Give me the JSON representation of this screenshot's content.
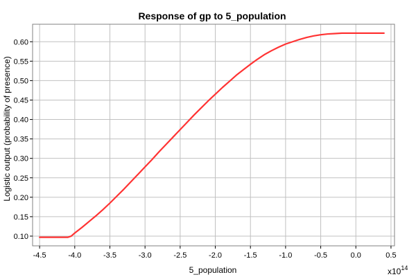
{
  "chart_data": {
    "type": "line",
    "title": "Response of gp to 5_population",
    "xlabel": "5_population",
    "ylabel": "Logistic output (probability of presence)",
    "x_multiplier": "x10",
    "x_multiplier_exponent": "14",
    "xlim": [
      -4.6,
      0.55
    ],
    "ylim": [
      0.075,
      0.645
    ],
    "x_ticks": [
      "-4.5",
      "-4.0",
      "-3.5",
      "-3.0",
      "-2.5",
      "-2.0",
      "-1.5",
      "-1.0",
      "-0.5",
      "0.0",
      "0.5"
    ],
    "y_ticks": [
      "0.10",
      "0.15",
      "0.20",
      "0.25",
      "0.30",
      "0.35",
      "0.40",
      "0.45",
      "0.50",
      "0.55",
      "0.60"
    ],
    "grid": true,
    "series": [
      {
        "color": "#ff3333",
        "x": [
          -4.5,
          -4.1,
          -4.05,
          -4.0,
          -3.9,
          -3.8,
          -3.7,
          -3.6,
          -3.5,
          -3.4,
          -3.3,
          -3.2,
          -3.1,
          -3.0,
          -2.9,
          -2.8,
          -2.7,
          -2.6,
          -2.5,
          -2.4,
          -2.3,
          -2.2,
          -2.1,
          -2.0,
          -1.9,
          -1.8,
          -1.7,
          -1.6,
          -1.5,
          -1.4,
          -1.3,
          -1.2,
          -1.1,
          -1.0,
          -0.9,
          -0.8,
          -0.7,
          -0.6,
          -0.5,
          -0.4,
          -0.3,
          -0.2,
          -0.15,
          0.0,
          0.4
        ],
        "y": [
          0.097,
          0.097,
          0.1,
          0.108,
          0.122,
          0.137,
          0.152,
          0.168,
          0.185,
          0.203,
          0.221,
          0.24,
          0.259,
          0.278,
          0.297,
          0.317,
          0.336,
          0.355,
          0.374,
          0.393,
          0.412,
          0.43,
          0.448,
          0.465,
          0.482,
          0.498,
          0.514,
          0.528,
          0.542,
          0.555,
          0.567,
          0.577,
          0.586,
          0.594,
          0.6,
          0.606,
          0.611,
          0.615,
          0.618,
          0.62,
          0.621,
          0.622,
          0.622,
          0.622,
          0.622
        ]
      }
    ]
  }
}
